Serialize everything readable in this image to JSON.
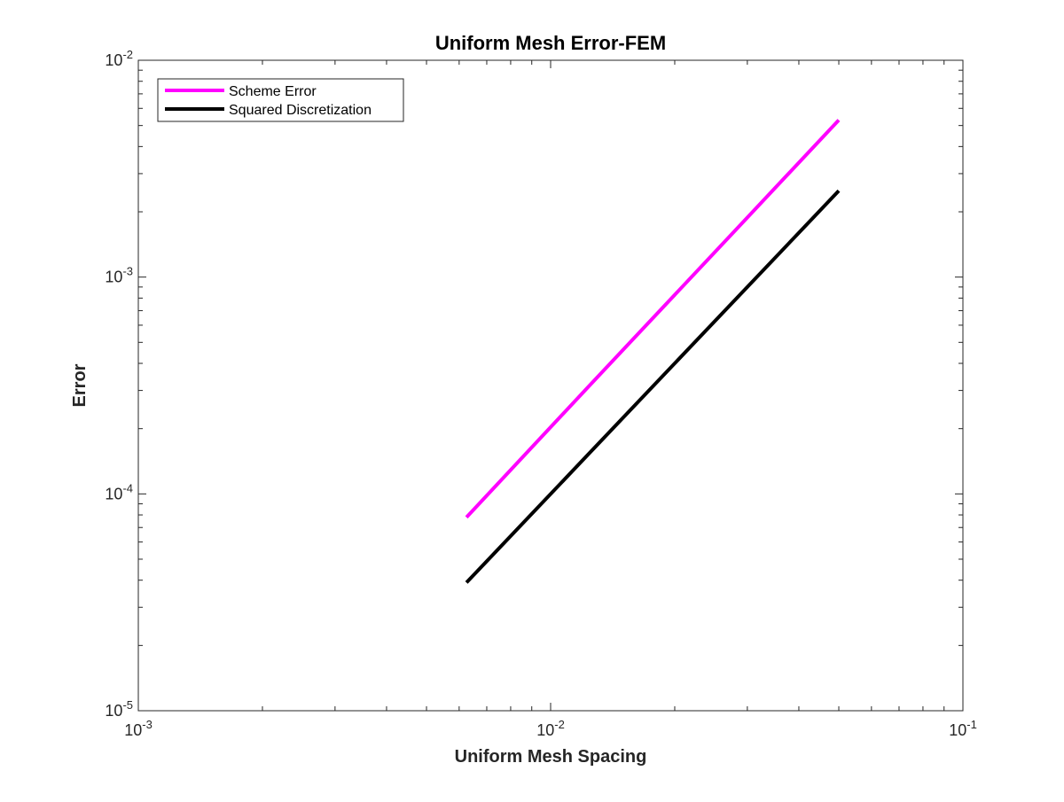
{
  "chart_data": {
    "type": "line",
    "title": "Uniform Mesh Error-FEM",
    "xlabel": "Uniform Mesh Spacing",
    "ylabel": "Error",
    "xscale": "log",
    "yscale": "log",
    "xlim": [
      0.001,
      0.1
    ],
    "ylim": [
      1e-05,
      0.01
    ],
    "grid": false,
    "legend_position": "top-left",
    "x_ticks": [
      {
        "value": 0.001,
        "base": "10",
        "exp": "-3"
      },
      {
        "value": 0.01,
        "base": "10",
        "exp": "-2"
      },
      {
        "value": 0.1,
        "base": "10",
        "exp": "-1"
      }
    ],
    "y_ticks": [
      {
        "value": 1e-05,
        "base": "10",
        "exp": "-5"
      },
      {
        "value": 0.0001,
        "base": "10",
        "exp": "-4"
      },
      {
        "value": 0.001,
        "base": "10",
        "exp": "-3"
      },
      {
        "value": 0.01,
        "base": "10",
        "exp": "-2"
      }
    ],
    "x": [
      0.00625,
      0.0125,
      0.025,
      0.05
    ],
    "series": [
      {
        "name": "Scheme Error",
        "color": "#ff00ff",
        "values": [
          7.8e-05,
          0.00032,
          0.0013,
          0.0053
        ]
      },
      {
        "name": "Squared Discretization",
        "color": "#000000",
        "values": [
          3.9e-05,
          0.00015625,
          0.000625,
          0.0025
        ]
      }
    ]
  }
}
